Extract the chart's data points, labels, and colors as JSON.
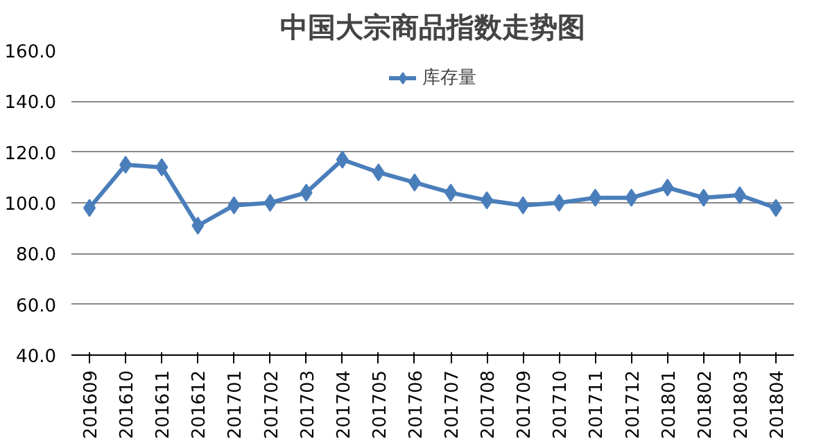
{
  "chart_data": {
    "type": "line",
    "title": "中国大宗商品指数走势图",
    "categories": [
      "201609",
      "201610",
      "201611",
      "201612",
      "201701",
      "201702",
      "201703",
      "201704",
      "201705",
      "201706",
      "201707",
      "201708",
      "201709",
      "201710",
      "201711",
      "201712",
      "201801",
      "201802",
      "201803",
      "201804"
    ],
    "series": [
      {
        "name": "库存量",
        "color": "#4a7ebb",
        "values": [
          98,
          115,
          114,
          91,
          99,
          100,
          104,
          117,
          112,
          108,
          104,
          101,
          99,
          100,
          102,
          102,
          106,
          102,
          103,
          98
        ]
      }
    ],
    "ylim": [
      40,
      160
    ],
    "yticks": [
      {
        "value": 40,
        "label": "40.0"
      },
      {
        "value": 60,
        "label": "60.0"
      },
      {
        "value": 80,
        "label": "80.0"
      },
      {
        "value": 100,
        "label": "100.0"
      },
      {
        "value": 120,
        "label": "120.0"
      },
      {
        "value": 140,
        "label": "140.0"
      },
      {
        "value": 160,
        "label": "160.0"
      }
    ],
    "grid": "y",
    "legend": "top",
    "marker": "diamond",
    "line_style": "solid"
  }
}
